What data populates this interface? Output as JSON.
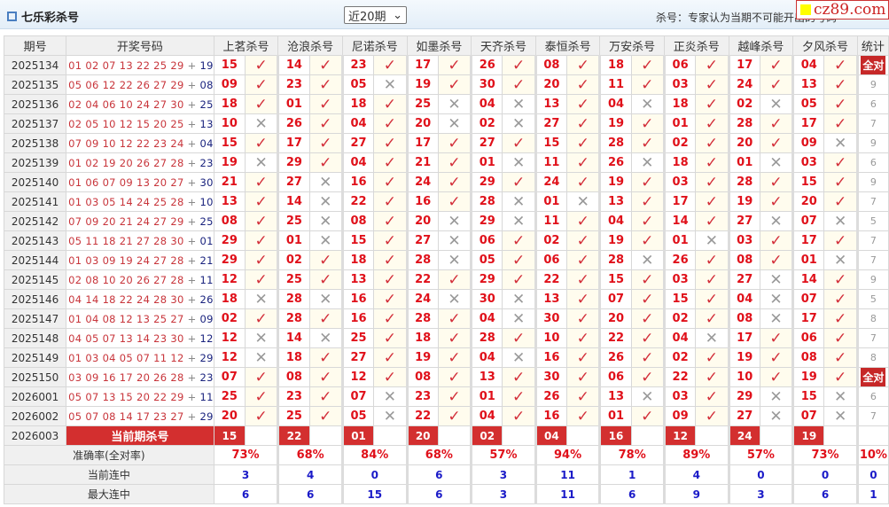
{
  "header": {
    "title": "七乐彩杀号",
    "period_select": "近20期",
    "note": "杀号：专家认为当期不可能开出的号码",
    "logo": "cz89.com"
  },
  "columns": {
    "issue": "期号",
    "draw": "开奖号码",
    "experts": [
      "上茗杀号",
      "沧浪杀号",
      "尼诺杀号",
      "如墨杀号",
      "天齐杀号",
      "泰恒杀号",
      "万安杀号",
      "正炎杀号",
      "越峰杀号",
      "夕风杀号"
    ],
    "stat": "统计"
  },
  "icons": {
    "ok": "check-icon",
    "no": "cross-icon"
  },
  "colors": {
    "accent": "#d32f2f",
    "kill_number": "#e0101a",
    "special": "#1a237e"
  },
  "rows": [
    {
      "issue": "2025134",
      "draw": [
        "01",
        "02",
        "07",
        "13",
        "22",
        "25",
        "29"
      ],
      "sp": "19",
      "picks": [
        "15v",
        "14v",
        "23v",
        "17v",
        "26v",
        "08v",
        "18v",
        "06v",
        "17v",
        "04v"
      ],
      "stat": "全对"
    },
    {
      "issue": "2025135",
      "draw": [
        "05",
        "06",
        "12",
        "22",
        "26",
        "27",
        "29"
      ],
      "sp": "08",
      "picks": [
        "09v",
        "23v",
        "05x",
        "19v",
        "30v",
        "20v",
        "11v",
        "03v",
        "24v",
        "13v"
      ],
      "stat": "9"
    },
    {
      "issue": "2025136",
      "draw": [
        "02",
        "04",
        "06",
        "10",
        "24",
        "27",
        "30"
      ],
      "sp": "25",
      "picks": [
        "18v",
        "01v",
        "18v",
        "25x",
        "04x",
        "13v",
        "04x",
        "18v",
        "02x",
        "05v"
      ],
      "stat": "6"
    },
    {
      "issue": "2025137",
      "draw": [
        "02",
        "05",
        "10",
        "12",
        "15",
        "20",
        "25"
      ],
      "sp": "13",
      "picks": [
        "10x",
        "26v",
        "04v",
        "20x",
        "02x",
        "27v",
        "19v",
        "01v",
        "28v",
        "17v"
      ],
      "stat": "7"
    },
    {
      "issue": "2025138",
      "draw": [
        "07",
        "09",
        "10",
        "12",
        "22",
        "23",
        "24"
      ],
      "sp": "04",
      "picks": [
        "15v",
        "17v",
        "27v",
        "17v",
        "27v",
        "15v",
        "28v",
        "02v",
        "20v",
        "09x"
      ],
      "stat": "9"
    },
    {
      "issue": "2025139",
      "draw": [
        "01",
        "02",
        "19",
        "20",
        "26",
        "27",
        "28"
      ],
      "sp": "23",
      "picks": [
        "19x",
        "29v",
        "04v",
        "21v",
        "01x",
        "11v",
        "26x",
        "18v",
        "01x",
        "03v"
      ],
      "stat": "6"
    },
    {
      "issue": "2025140",
      "draw": [
        "01",
        "06",
        "07",
        "09",
        "13",
        "20",
        "27"
      ],
      "sp": "30",
      "picks": [
        "21v",
        "27x",
        "16v",
        "24v",
        "29v",
        "24v",
        "19v",
        "03v",
        "28v",
        "15v"
      ],
      "stat": "9"
    },
    {
      "issue": "2025141",
      "draw": [
        "01",
        "03",
        "05",
        "14",
        "24",
        "25",
        "28"
      ],
      "sp": "10",
      "picks": [
        "13v",
        "14x",
        "22v",
        "16v",
        "28x",
        "01x",
        "13v",
        "17v",
        "19v",
        "20v"
      ],
      "stat": "7"
    },
    {
      "issue": "2025142",
      "draw": [
        "07",
        "09",
        "20",
        "21",
        "24",
        "27",
        "29"
      ],
      "sp": "25",
      "picks": [
        "08v",
        "25x",
        "08v",
        "20x",
        "29x",
        "11v",
        "04v",
        "14v",
        "27x",
        "07x"
      ],
      "stat": "5"
    },
    {
      "issue": "2025143",
      "draw": [
        "05",
        "11",
        "18",
        "21",
        "27",
        "28",
        "30"
      ],
      "sp": "01",
      "picks": [
        "29v",
        "01x",
        "15v",
        "27x",
        "06v",
        "02v",
        "19v",
        "01x",
        "03v",
        "17v"
      ],
      "stat": "7"
    },
    {
      "issue": "2025144",
      "draw": [
        "01",
        "03",
        "09",
        "19",
        "24",
        "27",
        "28"
      ],
      "sp": "21",
      "picks": [
        "29v",
        "02v",
        "18v",
        "28x",
        "05v",
        "06v",
        "28x",
        "26v",
        "08v",
        "01x"
      ],
      "stat": "7"
    },
    {
      "issue": "2025145",
      "draw": [
        "02",
        "08",
        "10",
        "20",
        "26",
        "27",
        "28"
      ],
      "sp": "11",
      "picks": [
        "12v",
        "25v",
        "13v",
        "22v",
        "29v",
        "22v",
        "15v",
        "03v",
        "27x",
        "14v"
      ],
      "stat": "9"
    },
    {
      "issue": "2025146",
      "draw": [
        "04",
        "14",
        "18",
        "22",
        "24",
        "28",
        "30"
      ],
      "sp": "26",
      "picks": [
        "18x",
        "28x",
        "16v",
        "24x",
        "30x",
        "13v",
        "07v",
        "15v",
        "04x",
        "07v"
      ],
      "stat": "5"
    },
    {
      "issue": "2025147",
      "draw": [
        "01",
        "04",
        "08",
        "12",
        "13",
        "25",
        "27"
      ],
      "sp": "09",
      "picks": [
        "02v",
        "28v",
        "16v",
        "28v",
        "04x",
        "30v",
        "20v",
        "02v",
        "08x",
        "17v"
      ],
      "stat": "8"
    },
    {
      "issue": "2025148",
      "draw": [
        "04",
        "05",
        "07",
        "13",
        "14",
        "23",
        "30"
      ],
      "sp": "12",
      "picks": [
        "12x",
        "14x",
        "25v",
        "18v",
        "28v",
        "10v",
        "22v",
        "04x",
        "17v",
        "06v"
      ],
      "stat": "7"
    },
    {
      "issue": "2025149",
      "draw": [
        "01",
        "03",
        "04",
        "05",
        "07",
        "11",
        "12"
      ],
      "sp": "29",
      "picks": [
        "12x",
        "18v",
        "27v",
        "19v",
        "04x",
        "16v",
        "26v",
        "02v",
        "19v",
        "08v"
      ],
      "stat": "8"
    },
    {
      "issue": "2025150",
      "draw": [
        "03",
        "09",
        "16",
        "17",
        "20",
        "26",
        "28"
      ],
      "sp": "23",
      "picks": [
        "07v",
        "08v",
        "12v",
        "08v",
        "13v",
        "30v",
        "06v",
        "22v",
        "10v",
        "19v"
      ],
      "stat": "全对"
    },
    {
      "issue": "2026001",
      "draw": [
        "05",
        "07",
        "13",
        "15",
        "20",
        "22",
        "29"
      ],
      "sp": "11",
      "picks": [
        "25v",
        "23v",
        "07x",
        "23v",
        "01v",
        "26v",
        "13x",
        "03v",
        "29x",
        "15x"
      ],
      "stat": "6"
    },
    {
      "issue": "2026002",
      "draw": [
        "05",
        "07",
        "08",
        "14",
        "17",
        "23",
        "27"
      ],
      "sp": "29",
      "picks": [
        "20v",
        "25v",
        "05x",
        "22v",
        "04v",
        "16v",
        "01v",
        "09v",
        "27x",
        "07x"
      ],
      "stat": "7"
    }
  ],
  "current": {
    "issue": "2026003",
    "label": "当前期杀号",
    "picks": [
      "15",
      "22",
      "01",
      "20",
      "02",
      "04",
      "16",
      "12",
      "24",
      "19"
    ]
  },
  "summary": {
    "accuracy_label": "准确率(全对率)",
    "accuracy": [
      "73%",
      "68%",
      "84%",
      "68%",
      "57%",
      "94%",
      "78%",
      "89%",
      "57%",
      "73%"
    ],
    "all_rate": "10%",
    "streak_label": "当前连中",
    "streak": [
      "3",
      "4",
      "0",
      "6",
      "3",
      "11",
      "1",
      "4",
      "0",
      "0"
    ],
    "streak_stat": "0",
    "max_label": "最大连中",
    "max": [
      "6",
      "6",
      "15",
      "6",
      "3",
      "11",
      "6",
      "9",
      "3",
      "6"
    ],
    "max_stat": "1"
  }
}
